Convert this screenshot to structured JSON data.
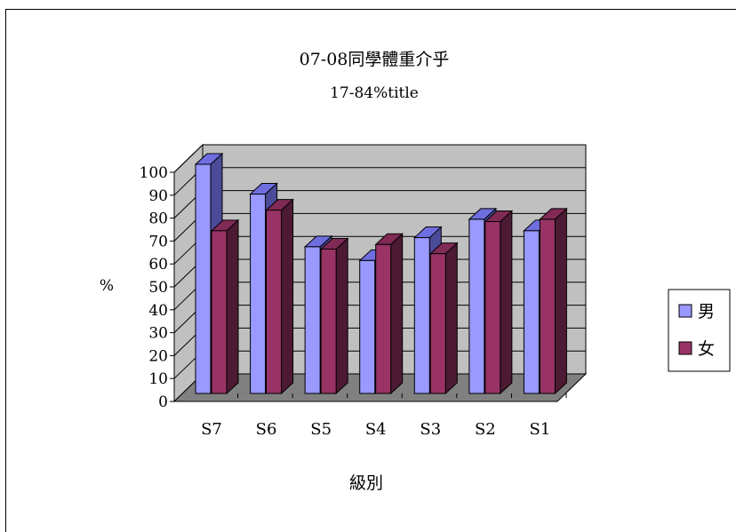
{
  "chart_data": {
    "type": "bar",
    "title": "07-08同學體重介乎",
    "subtitle": "17-84%title",
    "xlabel": "級別",
    "ylabel": "%",
    "categories": [
      "S7",
      "S6",
      "S5",
      "S4",
      "S3",
      "S2",
      "S1"
    ],
    "ylim": [
      0,
      100
    ],
    "yticks": [
      "0",
      "10",
      "20",
      "30",
      "40",
      "50",
      "60",
      "70",
      "80",
      "90",
      "100"
    ],
    "grid": true,
    "legend_position": "right",
    "series": [
      {
        "name": "男",
        "values": [
          100,
          87,
          64,
          58,
          68,
          76,
          71
        ],
        "color": "#9999ff",
        "top_color": "#6e6ee0",
        "side_color": "#4b4b99"
      },
      {
        "name": "女",
        "values": [
          71,
          80,
          63,
          65,
          61,
          75,
          76
        ],
        "color": "#993366",
        "top_color": "#802a55",
        "side_color": "#4d1a33"
      }
    ],
    "wall_color": "#c0c0c0",
    "floor_color": "#808080"
  }
}
